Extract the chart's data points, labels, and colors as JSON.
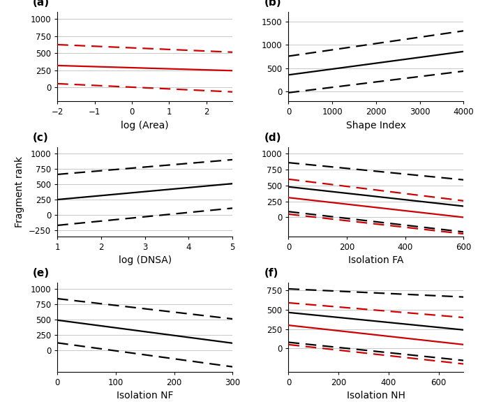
{
  "panels": [
    {
      "label": "(a)",
      "xlabel": "log (Area)",
      "xlim": [
        -2,
        2.7
      ],
      "ylim": [
        -200,
        1100
      ],
      "yticks": [
        0,
        250,
        500,
        750,
        1000
      ],
      "xticks": [
        -2,
        -1,
        0,
        1,
        2
      ],
      "has_ylabel": false,
      "has_red": true,
      "has_black": false,
      "red_solid": {
        "x": [
          -2,
          2.7
        ],
        "y": [
          320,
          245
        ]
      },
      "red_upper": {
        "x": [
          -2,
          2.7
        ],
        "y": [
          625,
          515
        ]
      },
      "red_lower": {
        "x": [
          -2,
          2.7
        ],
        "y": [
          55,
          -65
        ]
      },
      "black_solid": null,
      "black_upper": null,
      "black_lower": null
    },
    {
      "label": "(b)",
      "xlabel": "Shape Index",
      "xlim": [
        0,
        4000
      ],
      "ylim": [
        -200,
        1700
      ],
      "yticks": [
        0,
        500,
        1000,
        1500
      ],
      "xticks": [
        0,
        1000,
        2000,
        3000,
        4000
      ],
      "has_ylabel": false,
      "has_red": false,
      "has_black": true,
      "red_solid": null,
      "red_upper": null,
      "red_lower": null,
      "black_solid": {
        "x": [
          0,
          4000
        ],
        "y": [
          360,
          860
        ]
      },
      "black_upper": {
        "x": [
          0,
          4000
        ],
        "y": [
          760,
          1300
        ]
      },
      "black_lower": {
        "x": [
          0,
          4000
        ],
        "y": [
          -20,
          440
        ]
      }
    },
    {
      "label": "(c)",
      "xlabel": "log (DNSA)",
      "xlim": [
        1,
        5
      ],
      "ylim": [
        -350,
        1100
      ],
      "yticks": [
        -250,
        0,
        250,
        500,
        750,
        1000
      ],
      "xticks": [
        1,
        2,
        3,
        4,
        5
      ],
      "has_ylabel": true,
      "has_red": false,
      "has_black": true,
      "red_solid": null,
      "red_upper": null,
      "red_lower": null,
      "black_solid": {
        "x": [
          1,
          5
        ],
        "y": [
          250,
          510
        ]
      },
      "black_upper": {
        "x": [
          1,
          5
        ],
        "y": [
          660,
          900
        ]
      },
      "black_lower": {
        "x": [
          1,
          5
        ],
        "y": [
          -170,
          110
        ]
      }
    },
    {
      "label": "(d)",
      "xlabel": "Isolation FA",
      "xlim": [
        0,
        600
      ],
      "ylim": [
        -300,
        1100
      ],
      "yticks": [
        0,
        250,
        500,
        750,
        1000
      ],
      "xticks": [
        0,
        200,
        400,
        600
      ],
      "has_ylabel": false,
      "has_red": true,
      "has_black": true,
      "red_solid": {
        "x": [
          0,
          600
        ],
        "y": [
          310,
          0
        ]
      },
      "red_upper": {
        "x": [
          0,
          600
        ],
        "y": [
          600,
          260
        ]
      },
      "red_lower": {
        "x": [
          0,
          600
        ],
        "y": [
          50,
          -260
        ]
      },
      "black_solid": {
        "x": [
          0,
          600
        ],
        "y": [
          480,
          175
        ]
      },
      "black_upper": {
        "x": [
          0,
          600
        ],
        "y": [
          860,
          590
        ]
      },
      "black_lower": {
        "x": [
          0,
          600
        ],
        "y": [
          90,
          -230
        ]
      }
    },
    {
      "label": "(e)",
      "xlabel": "Isolation NF",
      "xlim": [
        0,
        300
      ],
      "ylim": [
        -350,
        1100
      ],
      "yticks": [
        0,
        250,
        500,
        750,
        1000
      ],
      "xticks": [
        0,
        100,
        200,
        300
      ],
      "has_ylabel": false,
      "has_red": false,
      "has_black": true,
      "red_solid": null,
      "red_upper": null,
      "red_lower": null,
      "black_solid": {
        "x": [
          0,
          300
        ],
        "y": [
          490,
          115
        ]
      },
      "black_upper": {
        "x": [
          0,
          300
        ],
        "y": [
          840,
          510
        ]
      },
      "black_lower": {
        "x": [
          0,
          300
        ],
        "y": [
          120,
          -270
        ]
      }
    },
    {
      "label": "(f)",
      "xlabel": "Isolation NH",
      "xlim": [
        0,
        700
      ],
      "ylim": [
        -300,
        850
      ],
      "yticks": [
        0,
        250,
        500,
        750
      ],
      "xticks": [
        0,
        200,
        400,
        600
      ],
      "has_ylabel": false,
      "has_red": true,
      "has_black": true,
      "red_solid": {
        "x": [
          0,
          700
        ],
        "y": [
          300,
          50
        ]
      },
      "red_upper": {
        "x": [
          0,
          700
        ],
        "y": [
          590,
          400
        ]
      },
      "red_lower": {
        "x": [
          0,
          700
        ],
        "y": [
          50,
          -200
        ]
      },
      "black_solid": {
        "x": [
          0,
          700
        ],
        "y": [
          465,
          240
        ]
      },
      "black_upper": {
        "x": [
          0,
          700
        ],
        "y": [
          770,
          665
        ]
      },
      "black_lower": {
        "x": [
          0,
          700
        ],
        "y": [
          80,
          -155
        ]
      }
    }
  ],
  "ylabel_shared": "Fragment rank",
  "red_color": "#cc0000",
  "black_color": "#000000",
  "grid_color": "#c8c8c8",
  "linewidth_solid": 1.6,
  "linewidth_dashed": 1.6,
  "dash_pattern": [
    7,
    4
  ]
}
